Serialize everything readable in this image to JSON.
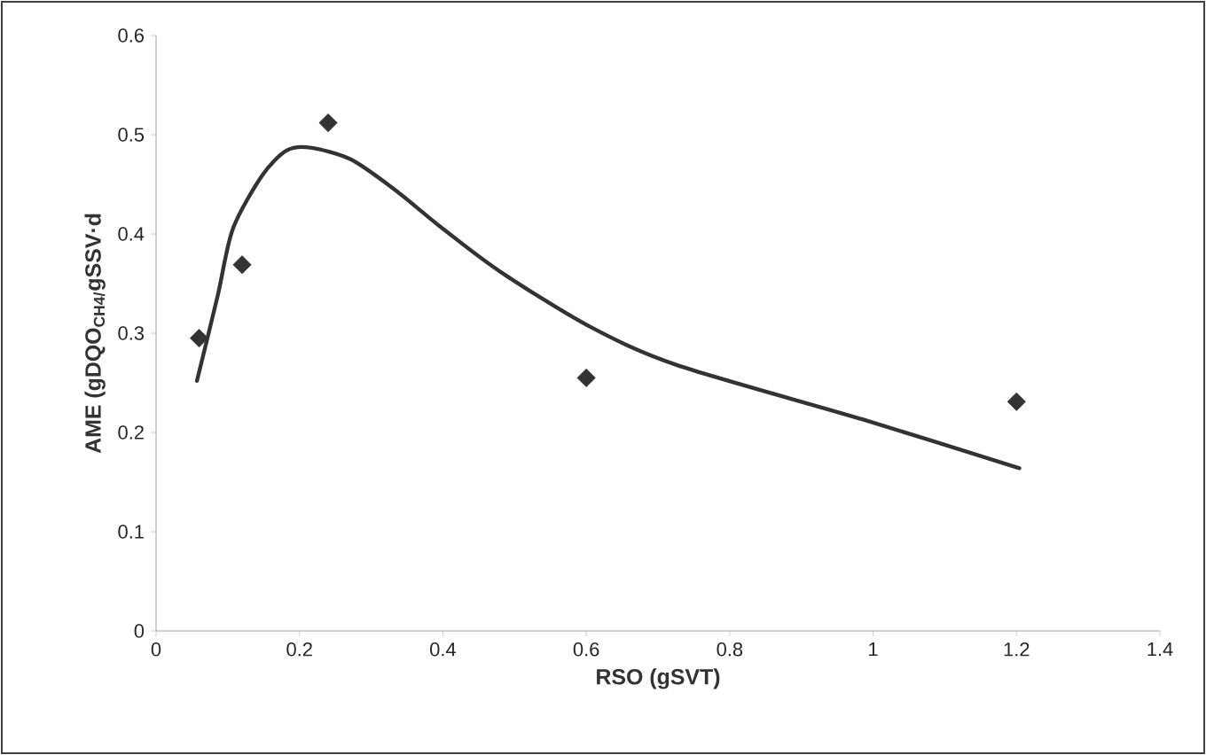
{
  "chart_data": {
    "type": "scatter",
    "xlabel": "RSO (gSVT)",
    "ylabel": "AME (gDQO$_{CH4/}$gSSV·d",
    "xlim": [
      0,
      1.4
    ],
    "xticks": [
      0,
      0.2,
      0.4,
      0.6,
      0.8,
      1,
      1.2,
      1.4
    ],
    "ylim": [
      0,
      0.6
    ],
    "yticks": [
      0,
      0.1,
      0.2,
      0.3,
      0.4,
      0.5,
      0.6
    ],
    "grid": false,
    "series": [
      {
        "color": "#333333",
        "marker": "diamond",
        "x": [
          0.06,
          0.12,
          0.24,
          0.6,
          1.2
        ],
        "values": [
          0.295,
          0.369,
          0.512,
          0.255,
          0.231
        ]
      },
      {
        "type": "line",
        "color": "#333333",
        "marker": "none",
        "line_style": "solid",
        "x": [
          0.057,
          0.086,
          0.107,
          0.148,
          0.182,
          0.215,
          0.272,
          0.334,
          0.397,
          0.48,
          0.604,
          0.726,
          0.986,
          1.204
        ],
        "values": [
          0.252,
          0.338,
          0.405,
          0.459,
          0.484,
          0.487,
          0.475,
          0.444,
          0.407,
          0.362,
          0.307,
          0.268,
          0.213,
          0.164
        ]
      }
    ]
  }
}
